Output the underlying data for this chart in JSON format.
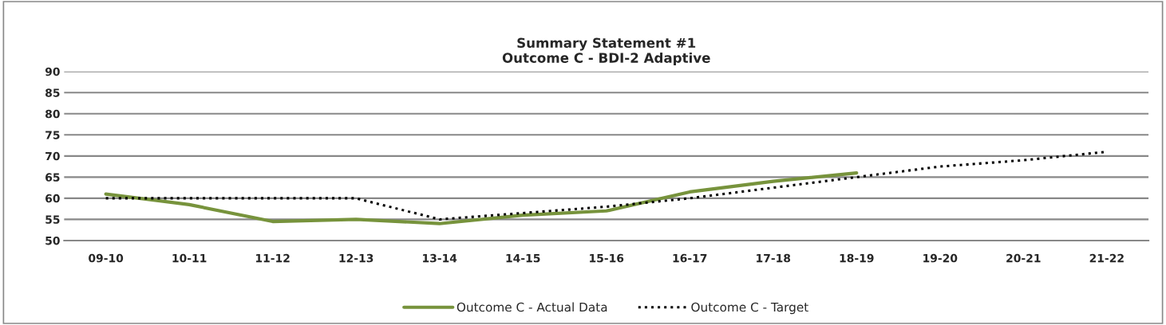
{
  "chart_data": {
    "type": "line",
    "title": "Summary Statement #1\nOutcome C - BDI-2 Adaptive",
    "categories": [
      "09-10",
      "10-11",
      "11-12",
      "12-13",
      "13-14",
      "14-15",
      "15-16",
      "16-17",
      "17-18",
      "18-19",
      "19-20",
      "20-21",
      "21-22"
    ],
    "series": [
      {
        "name": "Outcome C - Actual Data",
        "color": "#77933c",
        "line_style": "solid",
        "values": [
          61,
          58.5,
          54.5,
          55,
          54,
          56,
          57,
          61.5,
          64,
          66,
          null,
          null,
          null
        ]
      },
      {
        "name": "Outcome C - Target",
        "color": "#000000",
        "line_style": "dotted",
        "values": [
          60,
          60,
          60,
          60,
          55,
          56.5,
          58,
          60,
          62.5,
          65,
          67.5,
          69,
          71
        ]
      }
    ],
    "ylim": [
      50,
      90
    ],
    "yticks": [
      50,
      55,
      60,
      65,
      70,
      75,
      80,
      85,
      90
    ],
    "grid": "y",
    "legend": "bottom",
    "marker": "none"
  }
}
